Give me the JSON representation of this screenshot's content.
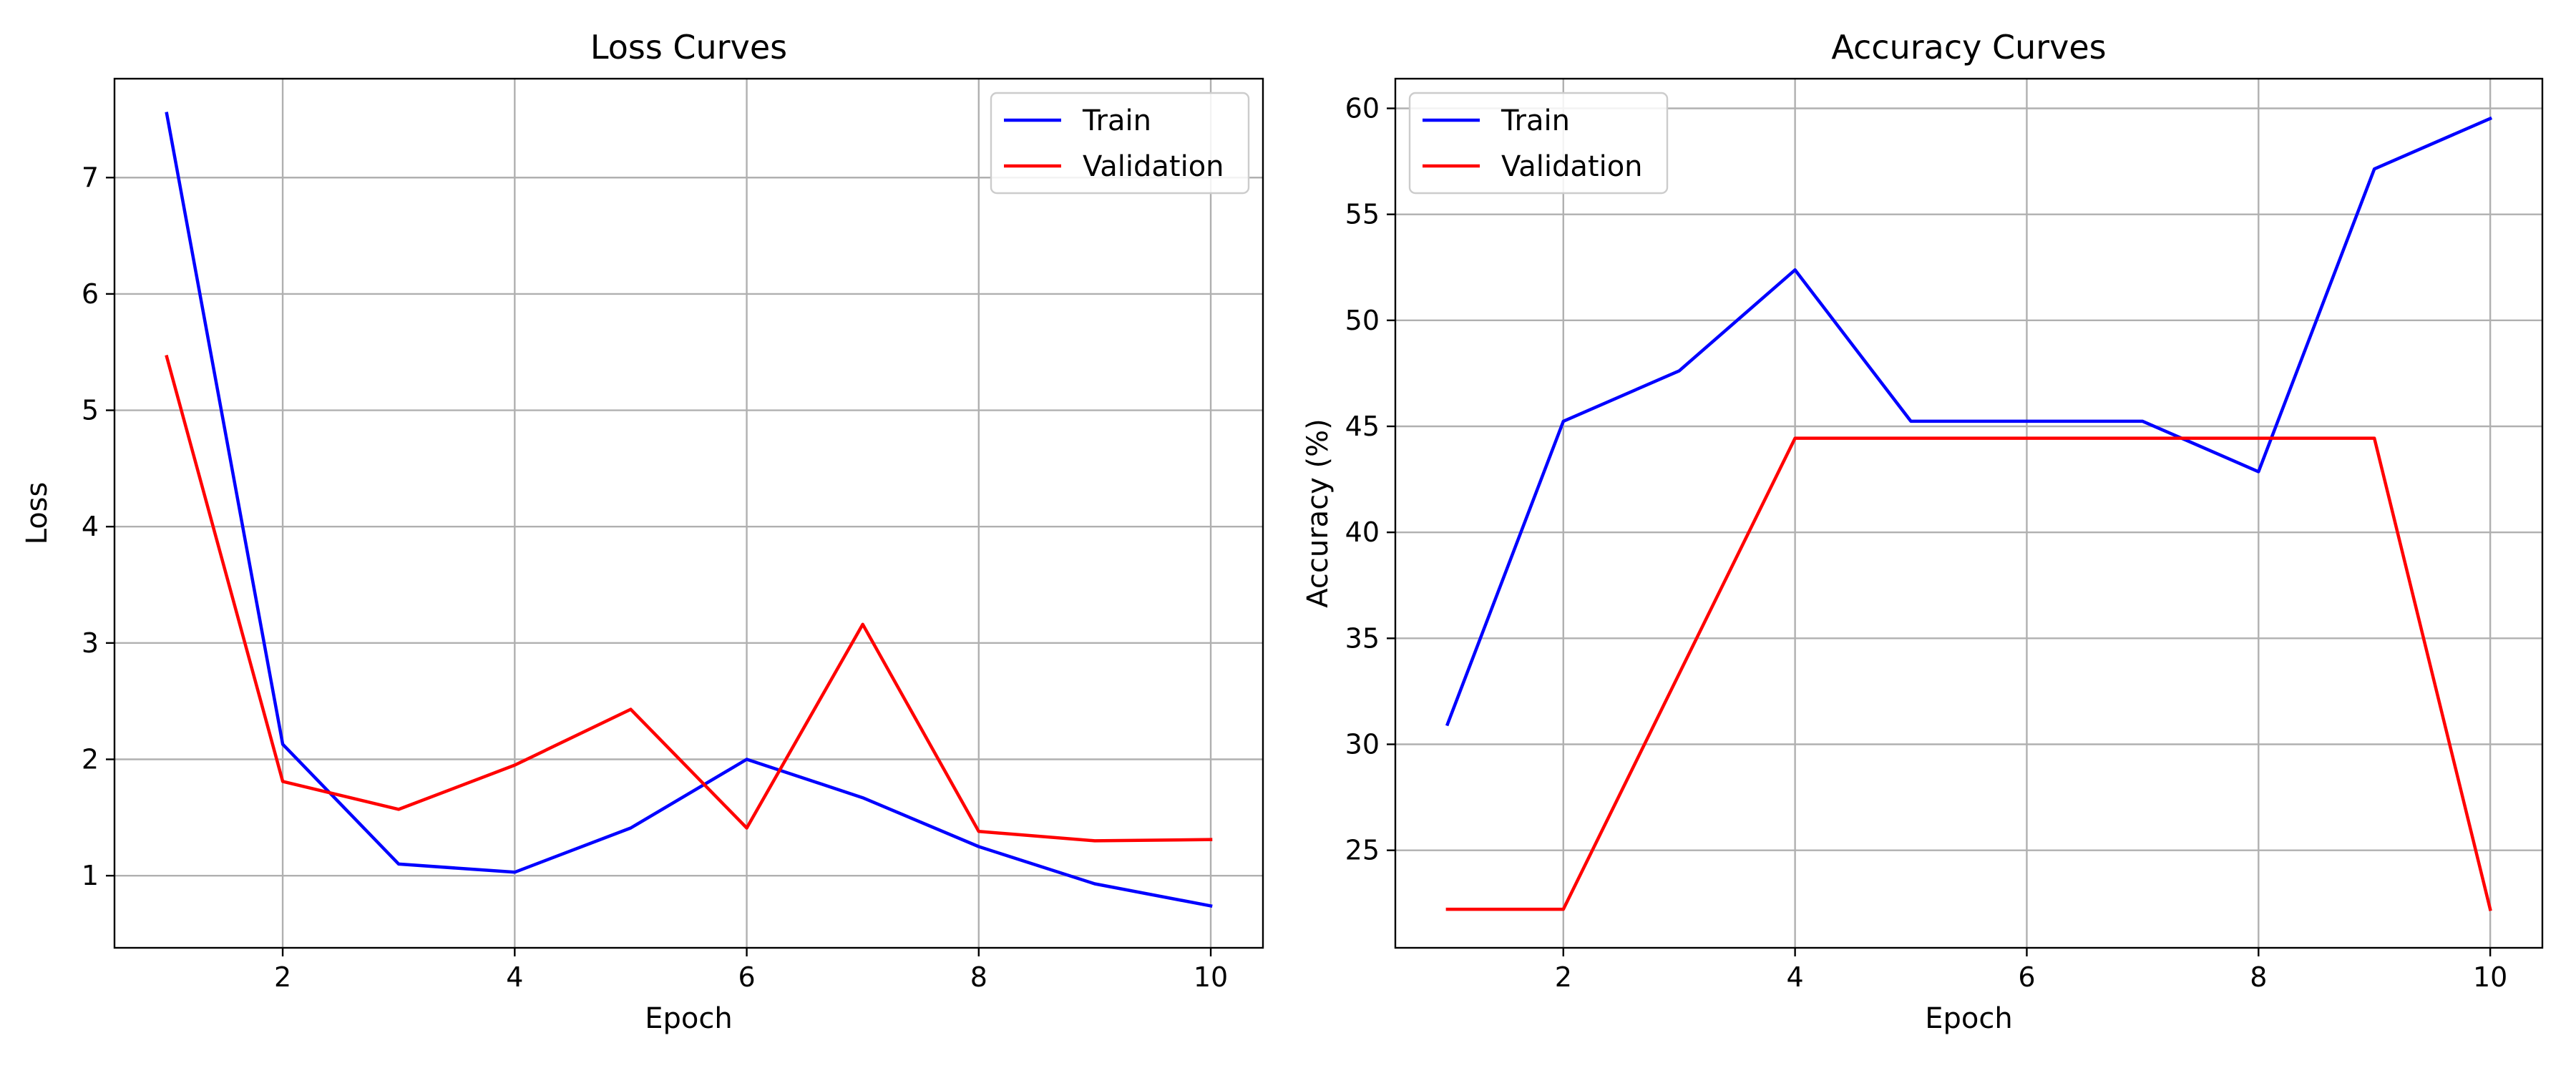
{
  "chart_data": [
    {
      "type": "line",
      "title": "Loss Curves",
      "xlabel": "Epoch",
      "ylabel": "Loss",
      "x": [
        1,
        2,
        3,
        4,
        5,
        6,
        7,
        8,
        9,
        10
      ],
      "xlim": [
        0.55,
        10.45
      ],
      "ylim": [
        0.38,
        7.85
      ],
      "xticks": [
        2,
        4,
        6,
        8,
        10
      ],
      "yticks": [
        1,
        2,
        3,
        4,
        5,
        6,
        7
      ],
      "grid": true,
      "legend_position": "top-right",
      "series": [
        {
          "name": "Train",
          "color": "#0000ff",
          "values": [
            7.55,
            2.13,
            1.1,
            1.03,
            1.41,
            2.0,
            1.67,
            1.25,
            0.93,
            0.74
          ]
        },
        {
          "name": "Validation",
          "color": "#ff0000",
          "values": [
            5.46,
            1.81,
            1.57,
            1.95,
            2.43,
            1.41,
            3.16,
            1.38,
            1.3,
            1.31
          ]
        }
      ]
    },
    {
      "type": "line",
      "title": "Accuracy Curves",
      "xlabel": "Epoch",
      "ylabel": "Accuracy (%)",
      "x": [
        1,
        2,
        3,
        4,
        5,
        6,
        7,
        8,
        9,
        10
      ],
      "xlim": [
        0.55,
        10.45
      ],
      "ylim": [
        20.4,
        61.4
      ],
      "xticks": [
        2,
        4,
        6,
        8,
        10
      ],
      "yticks": [
        25,
        30,
        35,
        40,
        45,
        50,
        55,
        60
      ],
      "grid": true,
      "legend_position": "top-left",
      "series": [
        {
          "name": "Train",
          "color": "#0000ff",
          "values": [
            30.95,
            45.24,
            47.62,
            52.38,
            45.24,
            45.24,
            45.24,
            42.86,
            57.14,
            59.52
          ]
        },
        {
          "name": "Validation",
          "color": "#ff0000",
          "values": [
            22.22,
            22.22,
            33.33,
            44.44,
            44.44,
            44.44,
            44.44,
            44.44,
            44.44,
            22.22
          ]
        }
      ]
    }
  ]
}
